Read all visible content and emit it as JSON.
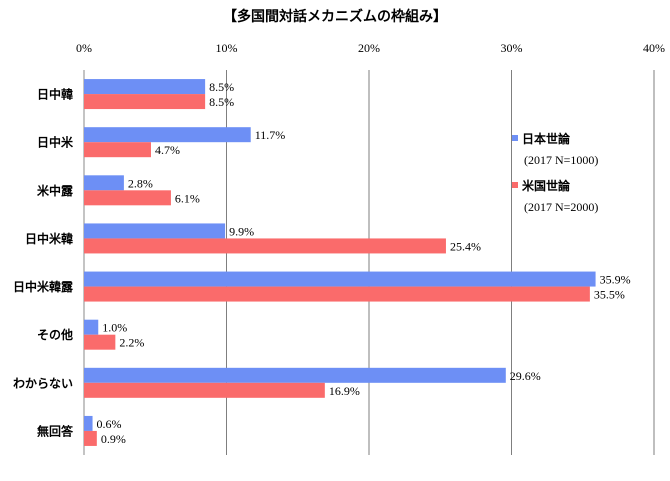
{
  "chart_data": {
    "type": "bar",
    "orientation": "horizontal",
    "title": "【多国間対話メカニズムの枠組み】",
    "categories": [
      "日中韓",
      "日中米",
      "米中露",
      "日中米韓",
      "日中米韓露",
      "その他",
      "わからない",
      "無回答"
    ],
    "series": [
      {
        "name": "日本世論",
        "subtitle": "(2017 N=1000)",
        "color": "#6d8ff5",
        "values": [
          8.5,
          11.7,
          2.8,
          9.9,
          35.9,
          1.0,
          29.6,
          0.6
        ],
        "labels": [
          "8.5%",
          "11.7%",
          "2.8%",
          "9.9%",
          "35.9%",
          "1.0%",
          "29.6%",
          "0.6%"
        ]
      },
      {
        "name": "米国世論",
        "subtitle": "(2017 N=2000)",
        "color": "#fa6b6b",
        "values": [
          8.5,
          4.7,
          6.1,
          25.4,
          35.5,
          2.2,
          16.9,
          0.9
        ],
        "labels": [
          "8.5%",
          "4.7%",
          "6.1%",
          "25.4%",
          "35.5%",
          "2.2%",
          "16.9%",
          "0.9%"
        ]
      }
    ],
    "xlim": [
      0,
      40
    ],
    "xticks": [
      0,
      10,
      20,
      30,
      40
    ],
    "xtick_labels": [
      "0%",
      "10%",
      "20%",
      "30%",
      "40%"
    ],
    "xlabel": "",
    "ylabel": "",
    "grid": true,
    "legend_position": "right"
  }
}
